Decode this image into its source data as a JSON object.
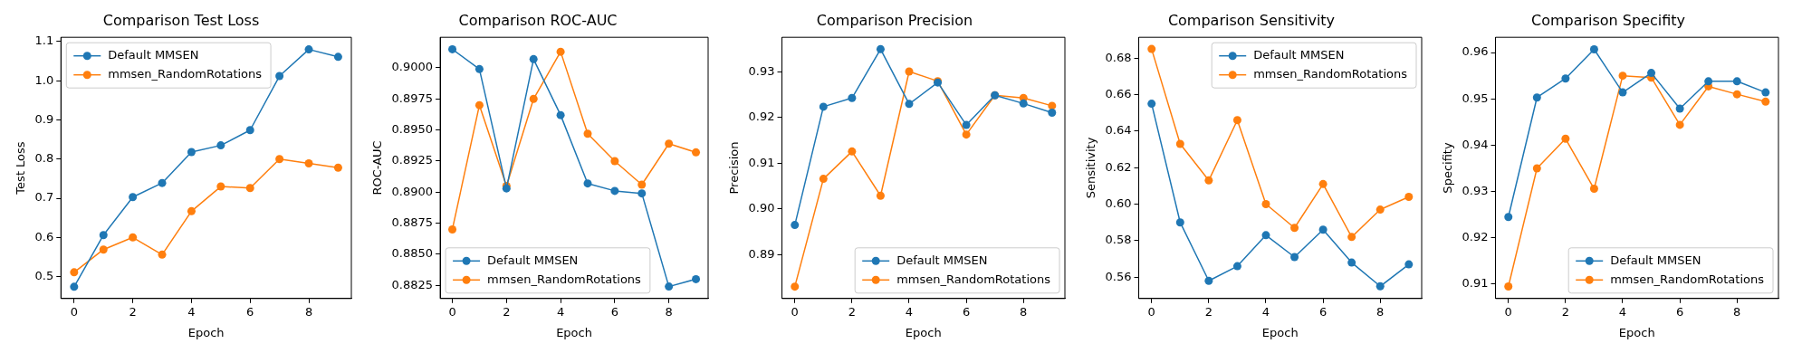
{
  "chart_data": [
    {
      "type": "line",
      "title": "Comparison Test Loss",
      "xlabel": "Epoch",
      "ylabel": "Test Loss",
      "x": [
        0,
        1,
        2,
        3,
        4,
        5,
        6,
        7,
        8,
        9
      ],
      "xlim": [
        -0.45,
        9.45
      ],
      "xticks": [
        0,
        2,
        4,
        6,
        8
      ],
      "ylim": [
        0.444,
        1.111
      ],
      "yticks": [
        0.5,
        0.6,
        0.7,
        0.8,
        0.9,
        {
          "value": 1,
          "label": "1.0"
        },
        1.1
      ],
      "grid": false,
      "marker": "circle",
      "legend": "top left",
      "series": [
        {
          "name": "Default MMSEN",
          "color": "#1f77b4",
          "values": [
            0.474,
            0.606,
            0.703,
            0.739,
            0.818,
            0.835,
            0.874,
            1.012,
            1.08,
            1.061
          ]
        },
        {
          "name": "mmsen_RandomRotations",
          "color": "#ff7f0e",
          "values": [
            0.511,
            0.569,
            0.6,
            0.556,
            0.667,
            0.73,
            0.726,
            0.8,
            0.789,
            0.778
          ]
        }
      ]
    },
    {
      "type": "line",
      "title": "Comparison ROC-AUC",
      "xlabel": "Epoch",
      "ylabel": "ROC-AUC",
      "x": [
        0,
        1,
        2,
        3,
        4,
        5,
        6,
        7,
        8,
        9
      ],
      "xlim": [
        -0.45,
        9.45
      ],
      "xticks": [
        0,
        2,
        4,
        6,
        8
      ],
      "ylim": [
        0.88144,
        0.90246
      ],
      "yticks": [
        {
          "value": 0.8825,
          "label": "0.8825"
        },
        {
          "value": 0.885,
          "label": "0.8850"
        },
        {
          "value": 0.8875,
          "label": "0.8875"
        },
        {
          "value": 0.89,
          "label": "0.8900"
        },
        {
          "value": 0.8925,
          "label": "0.8925"
        },
        {
          "value": 0.895,
          "label": "0.8950"
        },
        {
          "value": 0.8975,
          "label": "0.8975"
        },
        {
          "value": 0.9,
          "label": "0.9000"
        }
      ],
      "grid": false,
      "marker": "circle",
      "legend": "bottom left",
      "series": [
        {
          "name": "Default MMSEN",
          "color": "#1f77b4",
          "values": [
            0.9015,
            0.8999,
            0.8903,
            0.9007,
            0.8962,
            0.8907,
            0.8901,
            0.8899,
            0.8824,
            0.883
          ]
        },
        {
          "name": "mmsen_RandomRotations",
          "color": "#ff7f0e",
          "values": [
            0.887,
            0.897,
            0.8905,
            0.8975,
            0.9013,
            0.8947,
            0.8925,
            0.8906,
            0.8939,
            0.8932
          ]
        }
      ]
    },
    {
      "type": "line",
      "title": "Comparison Precision",
      "xlabel": "Epoch",
      "ylabel": "Precision",
      "x": [
        0,
        1,
        2,
        3,
        4,
        5,
        6,
        7,
        8,
        9
      ],
      "xlim": [
        -0.45,
        9.45
      ],
      "xticks": [
        0,
        2,
        4,
        6,
        8
      ],
      "ylim": [
        0.8804,
        0.9376
      ],
      "yticks": [
        0.89,
        {
          "value": 0.9,
          "label": "0.90"
        },
        0.91,
        0.92,
        0.93
      ],
      "grid": false,
      "marker": "circle",
      "legend": "bottom right",
      "series": [
        {
          "name": "Default MMSEN",
          "color": "#1f77b4",
          "values": [
            0.8965,
            0.9224,
            0.9243,
            0.935,
            0.923,
            0.9277,
            0.9184,
            0.9249,
            0.9231,
            0.9211
          ]
        },
        {
          "name": "mmsen_RandomRotations",
          "color": "#ff7f0e",
          "values": [
            0.883,
            0.9066,
            0.9126,
            0.9029,
            0.9301,
            0.928,
            0.9163,
            0.9249,
            0.9243,
            0.9226
          ]
        }
      ]
    },
    {
      "type": "line",
      "title": "Comparison Sensitivity",
      "xlabel": "Epoch",
      "ylabel": "Sensitivity",
      "x": [
        0,
        1,
        2,
        3,
        4,
        5,
        6,
        7,
        8,
        9
      ],
      "xlim": [
        -0.45,
        9.45
      ],
      "xticks": [
        0,
        2,
        4,
        6,
        8
      ],
      "ylim": [
        0.5483,
        0.6914
      ],
      "yticks": [
        0.56,
        0.58,
        {
          "value": 0.6,
          "label": "0.60"
        },
        0.62,
        0.64,
        0.66,
        0.68
      ],
      "grid": false,
      "marker": "circle",
      "legend": "top right",
      "series": [
        {
          "name": "Default MMSEN",
          "color": "#1f77b4",
          "values": [
            0.655,
            0.59,
            0.558,
            0.566,
            0.583,
            0.571,
            0.586,
            0.568,
            0.555,
            0.567
          ]
        },
        {
          "name": "mmsen_RandomRotations",
          "color": "#ff7f0e",
          "values": [
            0.685,
            0.633,
            0.613,
            0.646,
            0.6,
            0.587,
            0.611,
            0.582,
            0.597,
            0.604
          ]
        }
      ]
    },
    {
      "type": "line",
      "title": "Comparison Specifity",
      "xlabel": "Epoch",
      "ylabel": "Specifity",
      "x": [
        0,
        1,
        2,
        3,
        4,
        5,
        6,
        7,
        8,
        9
      ],
      "xlim": [
        -0.45,
        9.45
      ],
      "xticks": [
        0,
        2,
        4,
        6,
        8
      ],
      "ylim": [
        0.9069,
        0.9633
      ],
      "yticks": [
        0.91,
        0.92,
        0.93,
        0.94,
        0.95,
        0.96
      ],
      "grid": false,
      "marker": "circle",
      "legend": "bottom right",
      "series": [
        {
          "name": "Default MMSEN",
          "color": "#1f77b4",
          "values": [
            0.9245,
            0.9503,
            0.9544,
            0.9607,
            0.9514,
            0.9556,
            0.9479,
            0.9538,
            0.9538,
            0.9514
          ]
        },
        {
          "name": "mmsen_RandomRotations",
          "color": "#ff7f0e",
          "values": [
            0.9095,
            0.935,
            0.9414,
            0.9306,
            0.955,
            0.9546,
            0.9444,
            0.9527,
            0.951,
            0.9494
          ]
        }
      ]
    }
  ]
}
